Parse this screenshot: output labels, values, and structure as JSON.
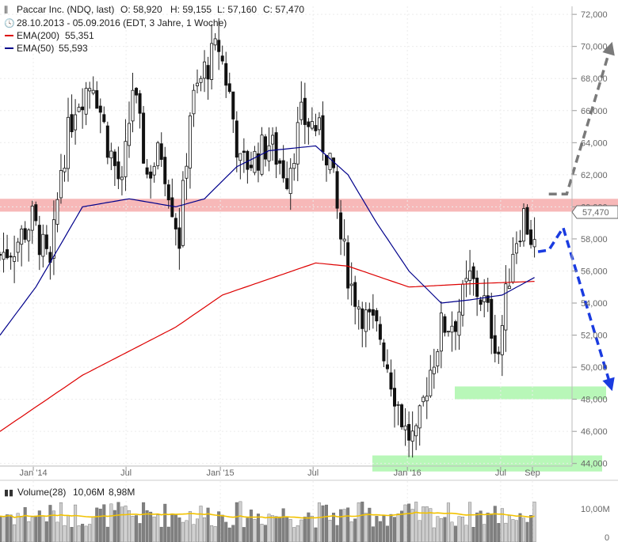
{
  "header": {
    "title": "Paccar Inc. (NDQ, last)",
    "open": "O: 58,920",
    "high": "H: 59,155",
    "low": "L: 57,160",
    "close": "C: 57,470",
    "range": "28.10.2013 - 05.09.2016 (EDT, 3 Jahre, 1 Woche)",
    "ema200_label": "EMA(200)",
    "ema200_value": "55,351",
    "ema50_label": "EMA(50)",
    "ema50_value": "55,593"
  },
  "volume": {
    "label": "Volume(28)",
    "value": "10,06M",
    "avg": "8,98M",
    "ticks": [
      "10,00M",
      "0"
    ]
  },
  "last_price_label": "57,470",
  "colors": {
    "ema200": "#dd0000",
    "ema50": "#00008b",
    "resistance_zone": "#f4a0a0",
    "support_zone": "#a6f5a6",
    "bull_arrow": "#7a7a7a",
    "bear_arrow": "#1a3be0",
    "volume_avg": "#f2c200"
  },
  "chart_data": {
    "type": "candlestick",
    "x_tick_labels": [
      "Jan '14",
      "Jul",
      "Jan '15",
      "Jul",
      "Jan '16",
      "Jul",
      "Sep"
    ],
    "x_tick_dates": [
      "2014-01-01",
      "2014-07-01",
      "2015-01-01",
      "2015-07-01",
      "2016-01-01",
      "2016-07-01",
      "2016-09-01"
    ],
    "y_ticks": [
      44000,
      46000,
      48000,
      50000,
      52000,
      54000,
      56000,
      58000,
      60000,
      62000,
      64000,
      66000,
      68000,
      70000,
      72000
    ],
    "y_tick_labels": [
      "44,000",
      "46,000",
      "48,000",
      "50,000",
      "52,000",
      "54,000",
      "56,000",
      "58,000",
      "60,000",
      "62,000",
      "64,000",
      "66,000",
      "68,000",
      "70,000",
      "72,000"
    ],
    "ylim": [
      43000,
      72500
    ],
    "xlim": [
      "2013-10-28",
      "2017-02-15"
    ],
    "close_path": [
      {
        "date": "2013-10-28",
        "close": 57.0
      },
      {
        "date": "2013-11-25",
        "close": 57.6
      },
      {
        "date": "2013-12-30",
        "close": 59.2
      },
      {
        "date": "2014-02-03",
        "close": 56.0
      },
      {
        "date": "2014-02-24",
        "close": 62.5
      },
      {
        "date": "2014-03-24",
        "close": 66.5
      },
      {
        "date": "2014-04-28",
        "close": 68.0
      },
      {
        "date": "2014-05-26",
        "close": 64.0
      },
      {
        "date": "2014-06-23",
        "close": 61.0
      },
      {
        "date": "2014-07-14",
        "close": 67.5
      },
      {
        "date": "2014-08-11",
        "close": 62.0
      },
      {
        "date": "2014-09-08",
        "close": 63.5
      },
      {
        "date": "2014-10-13",
        "close": 58.0
      },
      {
        "date": "2014-11-03",
        "close": 66.0
      },
      {
        "date": "2014-12-01",
        "close": 68.5
      },
      {
        "date": "2014-12-29",
        "close": 70.0
      },
      {
        "date": "2015-01-19",
        "close": 67.0
      },
      {
        "date": "2015-02-09",
        "close": 62.5
      },
      {
        "date": "2015-03-09",
        "close": 63.0
      },
      {
        "date": "2015-04-06",
        "close": 64.0
      },
      {
        "date": "2015-05-11",
        "close": 62.0
      },
      {
        "date": "2015-06-08",
        "close": 65.5
      },
      {
        "date": "2015-07-06",
        "close": 65.0
      },
      {
        "date": "2015-08-03",
        "close": 63.0
      },
      {
        "date": "2015-08-24",
        "close": 58.0
      },
      {
        "date": "2015-09-14",
        "close": 55.0
      },
      {
        "date": "2015-10-12",
        "close": 53.0
      },
      {
        "date": "2015-11-09",
        "close": 52.0
      },
      {
        "date": "2015-12-07",
        "close": 48.5
      },
      {
        "date": "2015-12-28",
        "close": 46.0
      },
      {
        "date": "2016-01-18",
        "close": 45.3
      },
      {
        "date": "2016-02-08",
        "close": 49.0
      },
      {
        "date": "2016-03-07",
        "close": 52.5
      },
      {
        "date": "2016-04-04",
        "close": 53.0
      },
      {
        "date": "2016-05-02",
        "close": 55.5
      },
      {
        "date": "2016-05-30",
        "close": 54.0
      },
      {
        "date": "2016-06-27",
        "close": 51.0
      },
      {
        "date": "2016-07-25",
        "close": 57.5
      },
      {
        "date": "2016-08-15",
        "close": 59.5
      },
      {
        "date": "2016-09-05",
        "close": 57.47
      }
    ],
    "ema50": [
      {
        "date": "2013-10-28",
        "value": 52.0
      },
      {
        "date": "2014-01-06",
        "value": 55.0
      },
      {
        "date": "2014-04-07",
        "value": 60.0
      },
      {
        "date": "2014-07-07",
        "value": 60.5
      },
      {
        "date": "2014-10-06",
        "value": 60.0
      },
      {
        "date": "2014-12-01",
        "value": 60.5
      },
      {
        "date": "2015-02-02",
        "value": 62.5
      },
      {
        "date": "2015-04-06",
        "value": 63.5
      },
      {
        "date": "2015-07-06",
        "value": 63.8
      },
      {
        "date": "2015-09-07",
        "value": 62.0
      },
      {
        "date": "2015-11-02",
        "value": 59.0
      },
      {
        "date": "2016-01-04",
        "value": 56.0
      },
      {
        "date": "2016-03-07",
        "value": 54.0
      },
      {
        "date": "2016-05-02",
        "value": 54.2
      },
      {
        "date": "2016-07-04",
        "value": 54.5
      },
      {
        "date": "2016-09-05",
        "value": 55.593
      }
    ],
    "ema200": [
      {
        "date": "2013-10-28",
        "value": 46.0
      },
      {
        "date": "2014-04-07",
        "value": 49.5
      },
      {
        "date": "2014-10-06",
        "value": 52.5
      },
      {
        "date": "2015-01-05",
        "value": 54.5
      },
      {
        "date": "2015-04-06",
        "value": 55.5
      },
      {
        "date": "2015-07-06",
        "value": 56.5
      },
      {
        "date": "2015-09-07",
        "value": 56.3
      },
      {
        "date": "2016-01-04",
        "value": 55.0
      },
      {
        "date": "2016-05-02",
        "value": 55.2
      },
      {
        "date": "2016-09-05",
        "value": 55.351
      }
    ],
    "resistance_zone": [
      59.7,
      60.5
    ],
    "support_zones": [
      [
        48.0,
        48.8
      ],
      [
        43.5,
        44.5
      ]
    ],
    "bull_arrow_path": [
      {
        "date": "2016-10-03",
        "value": 60.8
      },
      {
        "date": "2016-11-07",
        "value": 60.8
      },
      {
        "date": "2017-02-01",
        "value": 70.0
      }
    ],
    "bear_arrow_path": [
      {
        "date": "2016-09-12",
        "value": 57.2
      },
      {
        "date": "2016-10-03",
        "value": 57.3
      },
      {
        "date": "2016-10-31",
        "value": 58.7
      },
      {
        "date": "2017-02-01",
        "value": 48.8
      }
    ]
  }
}
